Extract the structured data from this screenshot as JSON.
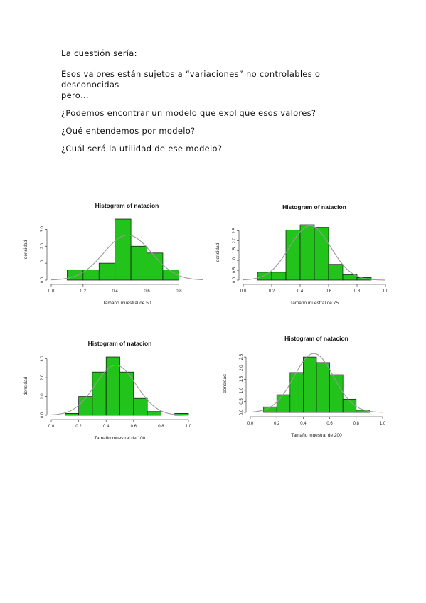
{
  "text": {
    "line1": "La cuestión sería:",
    "line2a": "Esos valores están sujetos a “variaciones” no controlables o desconocidas",
    "line2b": "pero…",
    "line3": "¿Podemos encontrar un modelo que explique esos valores?",
    "line4": "¿Qué entendemos por modelo?",
    "line5": "¿Cuál será la utilidad de ese modelo?"
  },
  "colors": {
    "bar_fill": "#22c31b",
    "bar_stroke": "#111111",
    "curve": "#9a9a9a"
  },
  "chart_data": [
    {
      "type": "bar",
      "title": "Histogram of natacion",
      "xlabel": "Tamaño muestral de 50",
      "ylabel": "densidad",
      "xlim": [
        0,
        0.95
      ],
      "ylim": [
        0,
        3.6
      ],
      "xticks": [
        "0.0",
        "0.2",
        "0.4",
        "0.6",
        "0.8"
      ],
      "yticks": [
        "0.0",
        "1.0",
        "2.0",
        "3.0"
      ],
      "bins": [
        [
          0.1,
          0.2,
          0.6
        ],
        [
          0.2,
          0.3,
          0.6
        ],
        [
          0.3,
          0.4,
          1.0
        ],
        [
          0.4,
          0.5,
          3.6
        ],
        [
          0.5,
          0.6,
          2.0
        ],
        [
          0.6,
          0.7,
          1.6
        ],
        [
          0.7,
          0.8,
          0.6
        ]
      ],
      "normal_curve": {
        "mean": 0.48,
        "sd": 0.15
      }
    },
    {
      "type": "bar",
      "title": "Histogram of natacion",
      "xlabel": "Tamaño muestral de 75",
      "ylabel": "densidad",
      "xlim": [
        0,
        1.0
      ],
      "ylim": [
        0,
        2.8
      ],
      "xticks": [
        "0.0",
        "0.2",
        "0.4",
        "0.6",
        "0.8",
        "1.0"
      ],
      "yticks": [
        "0.0",
        "0.5",
        "1.0",
        "1.5",
        "2.0",
        "2.5"
      ],
      "bins": [
        [
          0.1,
          0.2,
          0.4
        ],
        [
          0.2,
          0.3,
          0.4
        ],
        [
          0.3,
          0.4,
          2.53
        ],
        [
          0.4,
          0.5,
          2.8
        ],
        [
          0.5,
          0.6,
          2.67
        ],
        [
          0.6,
          0.7,
          0.8
        ],
        [
          0.7,
          0.8,
          0.27
        ],
        [
          0.8,
          0.9,
          0.13
        ]
      ],
      "normal_curve": {
        "mean": 0.47,
        "sd": 0.145
      }
    },
    {
      "type": "bar",
      "title": "Histogram of natacion",
      "xlabel": "Tamaño muestral de 100",
      "ylabel": "densidad",
      "xlim": [
        0,
        1.0
      ],
      "ylim": [
        0,
        3.1
      ],
      "xticks": [
        "0.0",
        "0.2",
        "0.4",
        "0.6",
        "0.8",
        "1.0"
      ],
      "yticks": [
        "0.0",
        "1.0",
        "2.0",
        "3.0"
      ],
      "bins": [
        [
          0.1,
          0.2,
          0.1
        ],
        [
          0.2,
          0.3,
          1.0
        ],
        [
          0.3,
          0.4,
          2.3
        ],
        [
          0.4,
          0.5,
          3.1
        ],
        [
          0.5,
          0.6,
          2.3
        ],
        [
          0.6,
          0.7,
          0.9
        ],
        [
          0.7,
          0.8,
          0.2
        ],
        [
          0.8,
          0.9,
          0.0
        ],
        [
          0.9,
          1.0,
          0.1
        ]
      ],
      "normal_curve": {
        "mean": 0.47,
        "sd": 0.15
      }
    },
    {
      "type": "bar",
      "title": "Histogram of natacion",
      "xlabel": "Tamaño muestral de 200",
      "ylabel": "densidad",
      "xlim": [
        0,
        1.0
      ],
      "ylim": [
        0,
        2.6
      ],
      "xticks": [
        "0.0",
        "0.2",
        "0.4",
        "0.6",
        "0.8",
        "1.0"
      ],
      "yticks": [
        "0.0",
        "0.5",
        "1.0",
        "1.5",
        "2.0",
        "2.5"
      ],
      "bins": [
        [
          0.1,
          0.2,
          0.25
        ],
        [
          0.2,
          0.3,
          0.8
        ],
        [
          0.3,
          0.4,
          1.8
        ],
        [
          0.4,
          0.5,
          2.5
        ],
        [
          0.5,
          0.6,
          2.25
        ],
        [
          0.6,
          0.7,
          1.7
        ],
        [
          0.7,
          0.8,
          0.6
        ],
        [
          0.8,
          0.9,
          0.1
        ]
      ],
      "normal_curve": {
        "mean": 0.48,
        "sd": 0.15
      }
    }
  ]
}
